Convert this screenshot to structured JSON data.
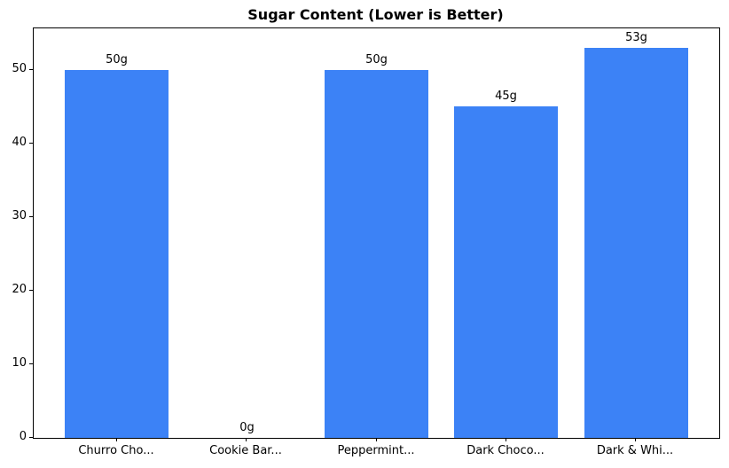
{
  "title": "Sugar Content (Lower is Better)",
  "colors": {
    "bar": "#3C82F6",
    "axis": "#000000",
    "text": "#000000",
    "background": "#ffffff"
  },
  "chart_data": {
    "type": "bar",
    "title": "Sugar Content (Lower is Better)",
    "categories": [
      "Churro Cho...",
      "Cookie Bar...",
      "Peppermint...",
      "Dark Choco...",
      "Dark & Whi..."
    ],
    "values": [
      50,
      0,
      50,
      45,
      53
    ],
    "bar_labels": [
      "50g",
      "0g",
      "50g",
      "45g",
      "53g"
    ],
    "xlabel": "",
    "ylabel": "",
    "ylim": [
      0,
      55.65
    ],
    "yticks": [
      0,
      10,
      20,
      30,
      40,
      50
    ],
    "grid": false,
    "legend": null
  }
}
